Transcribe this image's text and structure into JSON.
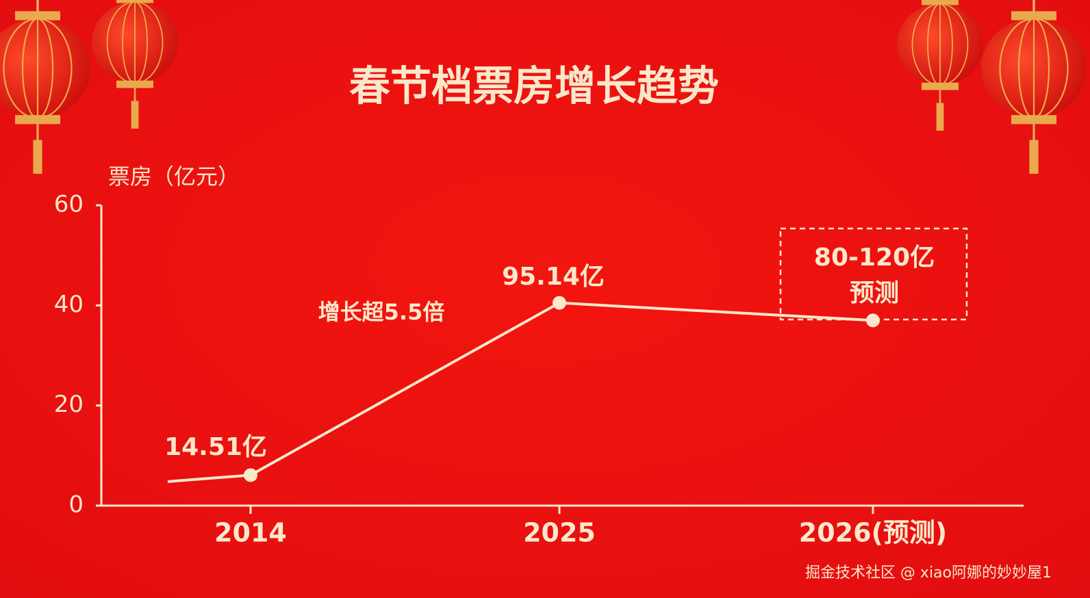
{
  "chart_data": {
    "type": "line",
    "title": "春节档票房增长趋势",
    "y_label": "票房（亿元）",
    "categories": [
      null,
      "2014",
      "2025",
      "2026(预测)"
    ],
    "values": [
      4.8,
      6.1,
      40.5,
      37
    ],
    "color": "#fbe7c9",
    "ylim": [
      0,
      60
    ],
    "yticks": [
      0,
      20,
      40,
      60
    ],
    "annotations": [
      "14.51亿",
      "95.14亿",
      "增长超5.5倍"
    ],
    "forecast_note": [
      "80-120亿",
      "预测"
    ]
  },
  "watermark": "掘金技术社区 @ xiao阿娜的妙妙屋1"
}
